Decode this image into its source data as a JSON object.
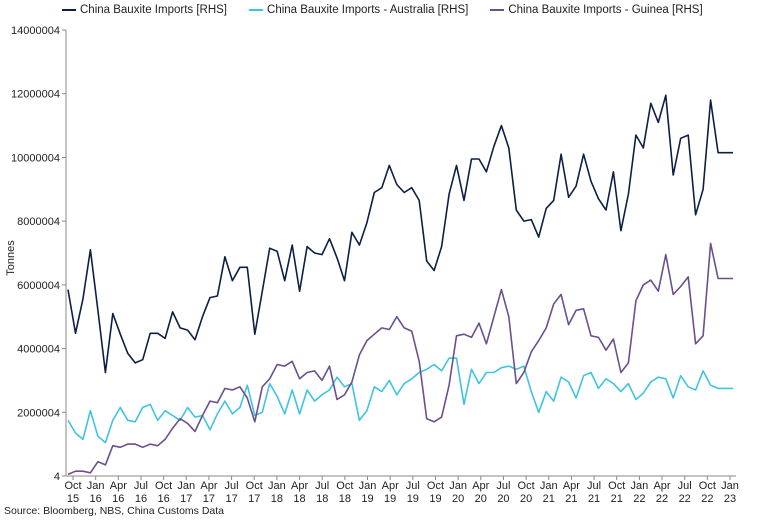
{
  "chart_data": {
    "type": "line",
    "ylabel": "Tonnes",
    "ylim": [
      4,
      14000004
    ],
    "y_ticks": [
      4,
      2000004,
      4000004,
      6000004,
      8000004,
      10000004,
      12000004,
      14000004
    ],
    "y_tick_labels": [
      "4",
      "2000004",
      "4000004",
      "6000004",
      "8000004",
      "10000004",
      "12000004",
      "14000004"
    ],
    "grid": false,
    "legend_position": "top",
    "x_tick_labels": [
      {
        "month": "Oct",
        "year": "15"
      },
      {
        "month": "Jan",
        "year": "16"
      },
      {
        "month": "Apr",
        "year": "16"
      },
      {
        "month": "Jul",
        "year": "16"
      },
      {
        "month": "Oct",
        "year": "16"
      },
      {
        "month": "Jan",
        "year": "17"
      },
      {
        "month": "Apr",
        "year": "17"
      },
      {
        "month": "Jul",
        "year": "17"
      },
      {
        "month": "Oct",
        "year": "17"
      },
      {
        "month": "Jan",
        "year": "18"
      },
      {
        "month": "Apr",
        "year": "18"
      },
      {
        "month": "Jul",
        "year": "18"
      },
      {
        "month": "Oct",
        "year": "18"
      },
      {
        "month": "Jan",
        "year": "19"
      },
      {
        "month": "Apr",
        "year": "19"
      },
      {
        "month": "Jul",
        "year": "19"
      },
      {
        "month": "Oct",
        "year": "19"
      },
      {
        "month": "Jan",
        "year": "20"
      },
      {
        "month": "Apr",
        "year": "20"
      },
      {
        "month": "Jul",
        "year": "20"
      },
      {
        "month": "Oct",
        "year": "20"
      },
      {
        "month": "Jan",
        "year": "21"
      },
      {
        "month": "Apr",
        "year": "21"
      },
      {
        "month": "Jul",
        "year": "21"
      },
      {
        "month": "Oct",
        "year": "21"
      },
      {
        "month": "Jan",
        "year": "22"
      },
      {
        "month": "Apr",
        "year": "22"
      },
      {
        "month": "Jul",
        "year": "22"
      },
      {
        "month": "Oct",
        "year": "22"
      },
      {
        "month": "Jan",
        "year": "23"
      }
    ],
    "series": [
      {
        "name": "China Bauxite Imports [RHS]",
        "color": "#0d1f45",
        "values": [
          5850000,
          4480000,
          5550000,
          7100000,
          5200000,
          3250000,
          5100000,
          4450000,
          3850000,
          3550000,
          3650000,
          4480000,
          4480000,
          4320000,
          5150000,
          4650000,
          4580000,
          4280000,
          5000000,
          5600000,
          5650000,
          6880000,
          6130000,
          6550000,
          6550000,
          4450000,
          5800000,
          7150000,
          7050000,
          6130000,
          7250000,
          5800000,
          7200000,
          7000000,
          6950000,
          7450000,
          6850000,
          6130000,
          7650000,
          7250000,
          7950000,
          8900000,
          9050000,
          9750000,
          9150000,
          8900000,
          9050000,
          8650000,
          6750000,
          6450000,
          7200000,
          8850000,
          9750000,
          8650000,
          9950000,
          9950000,
          9550000,
          10350000,
          11000000,
          10300000,
          8350000,
          8000000,
          8050000,
          7500000,
          8400000,
          8650000,
          10100000,
          8750000,
          9100000,
          10100000,
          9250000,
          8700000,
          8350000,
          9550000,
          7700000,
          8850000,
          10700000,
          10300000,
          11700000,
          11100000,
          11950000,
          9450000,
          10600000,
          10700000,
          8200000,
          9000000,
          11800000,
          10150000,
          10150000,
          10150000
        ]
      },
      {
        "name": "China Bauxite Imports - Australia [RHS]",
        "color": "#3fc4e0",
        "values": [
          1750000,
          1350000,
          1150000,
          2050000,
          1250000,
          1050000,
          1750000,
          2150000,
          1750000,
          1700000,
          2150000,
          2250000,
          1750000,
          2050000,
          1900000,
          1750000,
          2150000,
          1850000,
          1900000,
          1450000,
          1950000,
          2350000,
          1950000,
          2150000,
          2850000,
          1900000,
          2000000,
          2900000,
          2500000,
          1950000,
          2700000,
          1950000,
          2700000,
          2350000,
          2550000,
          2700000,
          3100000,
          2800000,
          2900000,
          1750000,
          2050000,
          2800000,
          2650000,
          3000000,
          2550000,
          2900000,
          3050000,
          3250000,
          3350000,
          3500000,
          3300000,
          3700000,
          3700000,
          2250000,
          3350000,
          2900000,
          3250000,
          3250000,
          3400000,
          3450000,
          3350000,
          3450000,
          2650000,
          2000000,
          2650000,
          2350000,
          3100000,
          2950000,
          2450000,
          3150000,
          3250000,
          2750000,
          3050000,
          2900000,
          2650000,
          2900000,
          2400000,
          2600000,
          2950000,
          3100000,
          3050000,
          2450000,
          3150000,
          2800000,
          2700000,
          3300000,
          2850000,
          2750000,
          2750000,
          2750000
        ]
      },
      {
        "name": "China Bauxite Imports - Guinea [RHS]",
        "color": "#6b4f8e",
        "values": [
          50000,
          150000,
          150000,
          100000,
          450000,
          350000,
          950000,
          900000,
          1000000,
          1000000,
          900000,
          1000000,
          950000,
          1150000,
          1500000,
          1800000,
          1650000,
          1400000,
          1900000,
          2350000,
          2300000,
          2750000,
          2700000,
          2800000,
          2450000,
          1700000,
          2800000,
          3050000,
          3500000,
          3450000,
          3600000,
          3050000,
          3250000,
          3300000,
          3000000,
          3450000,
          2400000,
          2550000,
          2950000,
          3800000,
          4250000,
          4450000,
          4650000,
          4600000,
          5000000,
          4650000,
          4550000,
          3600000,
          1800000,
          1700000,
          1850000,
          2850000,
          4400000,
          4450000,
          4350000,
          4800000,
          4150000,
          5000000,
          5850000,
          5000000,
          2900000,
          3250000,
          3900000,
          4250000,
          4650000,
          5400000,
          5700000,
          4750000,
          5200000,
          5250000,
          4400000,
          4350000,
          3950000,
          4300000,
          3250000,
          3550000,
          5500000,
          6000000,
          6150000,
          5800000,
          6950000,
          5700000,
          5950000,
          6250000,
          4150000,
          4400000,
          7300000,
          6200000,
          6200000,
          6200000
        ]
      }
    ]
  },
  "source": "Source: Bloomberg, NBS, China Customs Data"
}
